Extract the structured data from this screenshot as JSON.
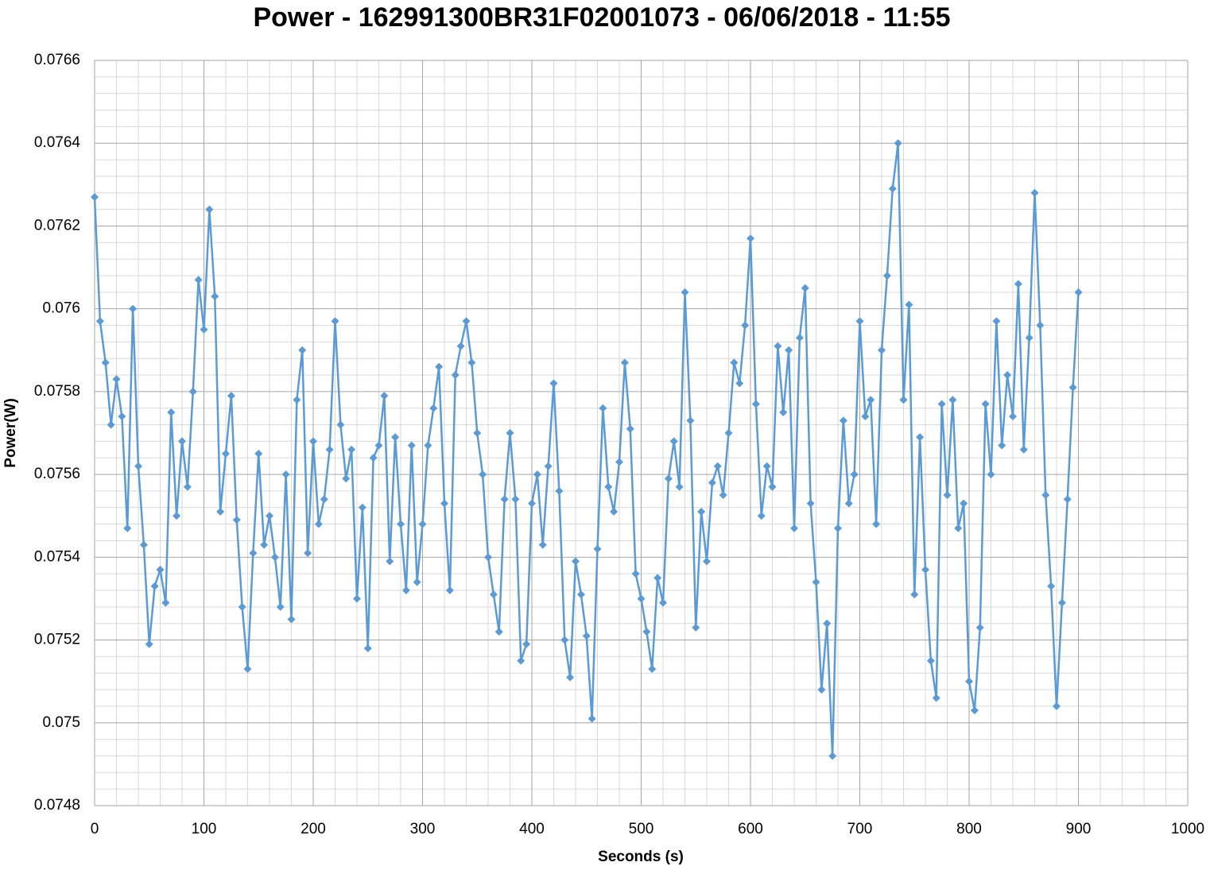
{
  "chart_data": {
    "type": "line",
    "title": "Power - 162991300BR31F02001073 - 06/06/2018 - 11:55",
    "x_label": "Seconds (s)",
    "y_label": "Power(W)",
    "xlim": [
      0,
      1000
    ],
    "xticks": [
      0,
      100,
      200,
      300,
      400,
      500,
      600,
      700,
      800,
      900,
      1000
    ],
    "ylim": [
      0.0748,
      0.0766
    ],
    "yticks": [
      0.0748,
      0.075,
      0.0752,
      0.0754,
      0.0756,
      0.0758,
      0.076,
      0.0762,
      0.0764,
      0.0766
    ],
    "grid": true,
    "minor_grid": true,
    "x": [
      0,
      5,
      10,
      15,
      20,
      25,
      30,
      35,
      40,
      45,
      50,
      55,
      60,
      65,
      70,
      75,
      80,
      85,
      90,
      95,
      100,
      105,
      110,
      115,
      120,
      125,
      130,
      135,
      140,
      145,
      150,
      155,
      160,
      165,
      170,
      175,
      180,
      185,
      190,
      195,
      200,
      205,
      210,
      215,
      220,
      225,
      230,
      235,
      240,
      245,
      250,
      255,
      260,
      265,
      270,
      275,
      280,
      285,
      290,
      295,
      300,
      305,
      310,
      315,
      320,
      325,
      330,
      335,
      340,
      345,
      350,
      355,
      360,
      365,
      370,
      375,
      380,
      385,
      390,
      395,
      400,
      405,
      410,
      415,
      420,
      425,
      430,
      435,
      440,
      445,
      450,
      455,
      460,
      465,
      470,
      475,
      480,
      485,
      490,
      495,
      500,
      505,
      510,
      515,
      520,
      525,
      530,
      535,
      540,
      545,
      550,
      555,
      560,
      565,
      570,
      575,
      580,
      585,
      590,
      595,
      600,
      605,
      610,
      615,
      620,
      625,
      630,
      635,
      640,
      645,
      650,
      655,
      660,
      665,
      670,
      675,
      680,
      685,
      690,
      695,
      700,
      705,
      710,
      715,
      720,
      725,
      730,
      735,
      740,
      745,
      750,
      755,
      760,
      765,
      770,
      775,
      780,
      785,
      790,
      795,
      800,
      805,
      810,
      815,
      820,
      825,
      830,
      835,
      840,
      845,
      850,
      855,
      860,
      865,
      870,
      875,
      880,
      885,
      890,
      895,
      900
    ],
    "series": [
      {
        "name": "Power",
        "color": "#5b9bd5",
        "values": [
          0.07627,
          0.07597,
          0.07587,
          0.07572,
          0.07583,
          0.07574,
          0.07547,
          0.076,
          0.07562,
          0.07543,
          0.07519,
          0.07533,
          0.07537,
          0.07529,
          0.07575,
          0.0755,
          0.07568,
          0.07557,
          0.0758,
          0.07607,
          0.07595,
          0.07624,
          0.07603,
          0.07551,
          0.07565,
          0.07579,
          0.07549,
          0.07528,
          0.07513,
          0.07541,
          0.07565,
          0.07543,
          0.0755,
          0.0754,
          0.07528,
          0.0756,
          0.07525,
          0.07578,
          0.0759,
          0.07541,
          0.07568,
          0.07548,
          0.07554,
          0.07566,
          0.07597,
          0.07572,
          0.07559,
          0.07566,
          0.0753,
          0.07552,
          0.07518,
          0.07564,
          0.07567,
          0.07579,
          0.07539,
          0.07569,
          0.07548,
          0.07532,
          0.07567,
          0.07534,
          0.07548,
          0.07567,
          0.07576,
          0.07586,
          0.07553,
          0.07532,
          0.07584,
          0.07591,
          0.07597,
          0.07587,
          0.0757,
          0.0756,
          0.0754,
          0.07531,
          0.07522,
          0.07554,
          0.0757,
          0.07554,
          0.07515,
          0.07519,
          0.07553,
          0.0756,
          0.07543,
          0.07562,
          0.07582,
          0.07556,
          0.0752,
          0.07511,
          0.07539,
          0.07531,
          0.07521,
          0.07501,
          0.07542,
          0.07576,
          0.07557,
          0.07551,
          0.07563,
          0.07587,
          0.07571,
          0.07536,
          0.0753,
          0.07522,
          0.07513,
          0.07535,
          0.07529,
          0.07559,
          0.07568,
          0.07557,
          0.07604,
          0.07573,
          0.07523,
          0.07551,
          0.07539,
          0.07558,
          0.07562,
          0.07555,
          0.0757,
          0.07587,
          0.07582,
          0.07596,
          0.07617,
          0.07577,
          0.0755,
          0.07562,
          0.07557,
          0.07591,
          0.07575,
          0.0759,
          0.07547,
          0.07593,
          0.07605,
          0.07553,
          0.07534,
          0.07508,
          0.07524,
          0.07492,
          0.07547,
          0.07573,
          0.07553,
          0.0756,
          0.07597,
          0.07574,
          0.07578,
          0.07548,
          0.0759,
          0.07608,
          0.07629,
          0.0764,
          0.07578,
          0.07601,
          0.07531,
          0.07569,
          0.07537,
          0.07515,
          0.07506,
          0.07577,
          0.07555,
          0.07578,
          0.07547,
          0.07553,
          0.0751,
          0.07503,
          0.07523,
          0.07577,
          0.0756,
          0.07597,
          0.07567,
          0.07584,
          0.07574,
          0.07606,
          0.07566,
          0.07593,
          0.07628,
          0.07596,
          0.07555,
          0.07533,
          0.07504,
          0.07529,
          0.07554,
          0.07581,
          0.07604
        ]
      }
    ]
  }
}
